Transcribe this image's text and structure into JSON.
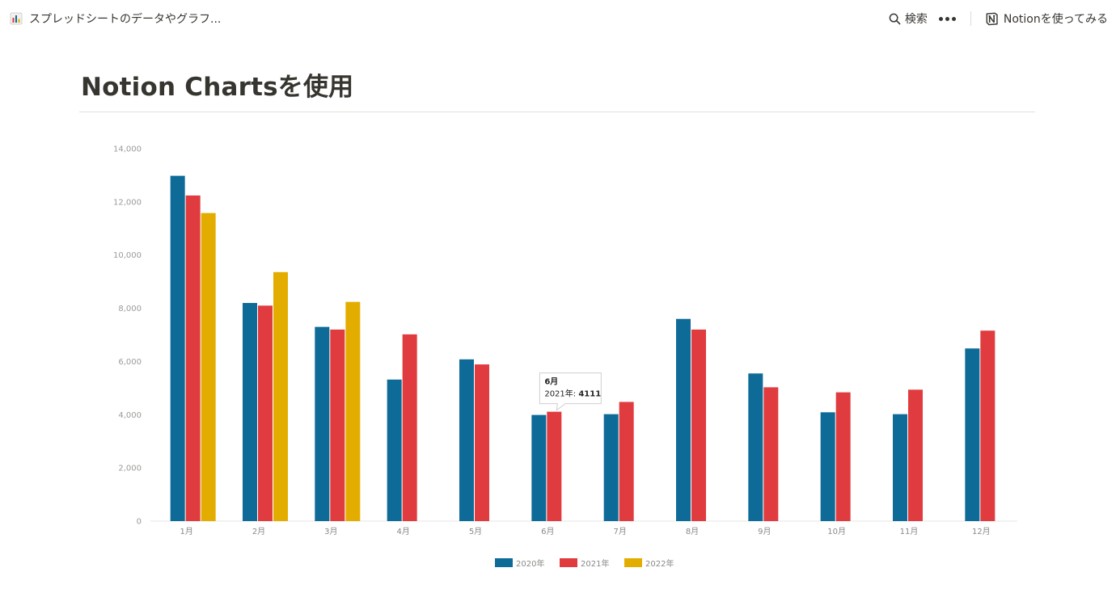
{
  "breadcrumb": {
    "icon": "bar-chart-icon",
    "text": "スプレッドシートのデータやグラフ..."
  },
  "header": {
    "search_label": "検索",
    "notion_label": "Notionを使ってみる"
  },
  "page": {
    "title": "Notion Chartsを使用"
  },
  "colors": {
    "s2020": "#0e6b98",
    "s2021": "#e03c3f",
    "s2022": "#e3ad00"
  },
  "chart_data": {
    "type": "bar",
    "categories": [
      "1月",
      "2月",
      "3月",
      "4月",
      "5月",
      "6月",
      "7月",
      "8月",
      "9月",
      "10月",
      "11月",
      "12月"
    ],
    "series": [
      {
        "name": "2020年",
        "values": [
          12980,
          8200,
          7300,
          5320,
          6080,
          3990,
          4020,
          7600,
          5550,
          4090,
          4020,
          6490
        ]
      },
      {
        "name": "2021年",
        "values": [
          12240,
          8100,
          7200,
          7020,
          5890,
          4111,
          4480,
          7200,
          5030,
          4840,
          4940,
          7160
        ]
      },
      {
        "name": "2022年",
        "values": [
          11580,
          9360,
          8240,
          null,
          null,
          null,
          null,
          null,
          null,
          null,
          null,
          null
        ]
      }
    ],
    "ylim": [
      0,
      14000
    ],
    "yticks": [
      "0",
      "2,000",
      "4,000",
      "6,000",
      "8,000",
      "10,000",
      "12,000",
      "14,000"
    ],
    "legend_position": "bottom-center",
    "tooltip": {
      "title": "6月",
      "series": "2021年",
      "value": "4111"
    }
  }
}
